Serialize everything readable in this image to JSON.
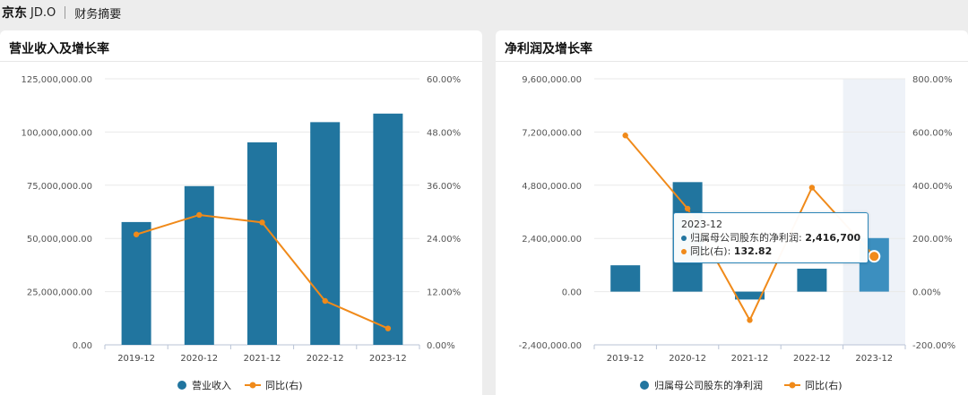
{
  "header": {
    "brand": "京东",
    "ticker": "JD.O",
    "section": "财务摘要"
  },
  "colors": {
    "bar": "#21759f",
    "line": "#f08a1a",
    "bar_highlight": "#3c8fbf"
  },
  "chart_data": [
    {
      "type": "bar",
      "title": "营业收入及增长率",
      "categories": [
        "2019-12",
        "2020-12",
        "2021-12",
        "2022-12",
        "2023-12"
      ],
      "y_left": {
        "ticks": [
          "0.00",
          "25,000,000.00",
          "50,000,000.00",
          "75,000,000.00",
          "100,000,000.00",
          "125,000,000.00"
        ],
        "range": [
          0,
          125000000
        ]
      },
      "y_right": {
        "ticks": [
          "0.00%",
          "12.00%",
          "24.00%",
          "36.00%",
          "48.00%",
          "60.00%"
        ],
        "range": [
          0,
          60
        ]
      },
      "series": [
        {
          "name": "营业收入",
          "type": "bar",
          "axis": "left",
          "values": [
            57700000,
            74580000,
            95160000,
            104640000,
            108660000
          ]
        },
        {
          "name": "同比(右)",
          "type": "line",
          "axis": "right",
          "values": [
            24.9,
            29.3,
            27.6,
            9.9,
            3.7
          ]
        }
      ],
      "legend": "bottom"
    },
    {
      "type": "bar",
      "title": "净利润及增长率",
      "categories": [
        "2019-12",
        "2020-12",
        "2021-12",
        "2022-12",
        "2023-12"
      ],
      "y_left": {
        "ticks": [
          "-2,400,000.00",
          "0.00",
          "2,400,000.00",
          "4,800,000.00",
          "7,200,000.00",
          "9,600,000.00"
        ],
        "range": [
          -2400000,
          9600000
        ]
      },
      "y_right": {
        "ticks": [
          "-200.00%",
          "0.00%",
          "200.00%",
          "400.00%",
          "600.00%",
          "800.00%"
        ],
        "range": [
          -200,
          800
        ]
      },
      "series": [
        {
          "name": "归属母公司股东的净利润",
          "type": "bar",
          "axis": "left",
          "values": [
            1189000,
            4940000,
            -356000,
            1036000,
            2416700
          ]
        },
        {
          "name": "同比(右)",
          "type": "line",
          "axis": "right",
          "values": [
            587,
            312,
            -107,
            391,
            132.82
          ]
        }
      ],
      "legend": "bottom",
      "highlighted_category": "2023-12",
      "tooltip": {
        "category": "2023-12",
        "rows": [
          {
            "label": "归属母公司股东的净利润:",
            "value": "2,416,700"
          },
          {
            "label": "同比(右):",
            "value": "132.82"
          }
        ]
      }
    }
  ]
}
